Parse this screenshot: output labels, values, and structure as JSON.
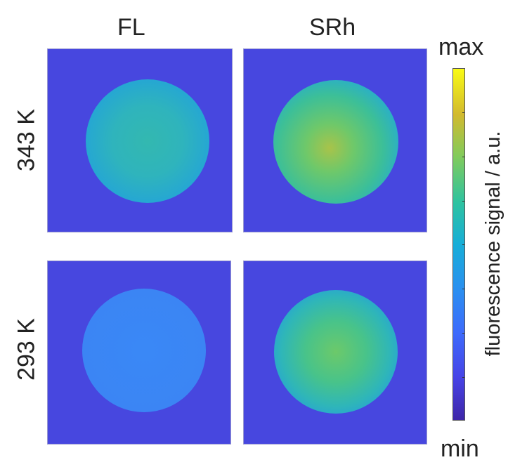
{
  "columns": [
    "FL",
    "SRh"
  ],
  "rows": [
    "343 K",
    "293 K"
  ],
  "colorbar": {
    "label": "fluorescence signal / a.u.",
    "max_label": "max",
    "min_label": "min",
    "colormap": "parula"
  },
  "colors": {
    "background": "#4747df"
  }
}
